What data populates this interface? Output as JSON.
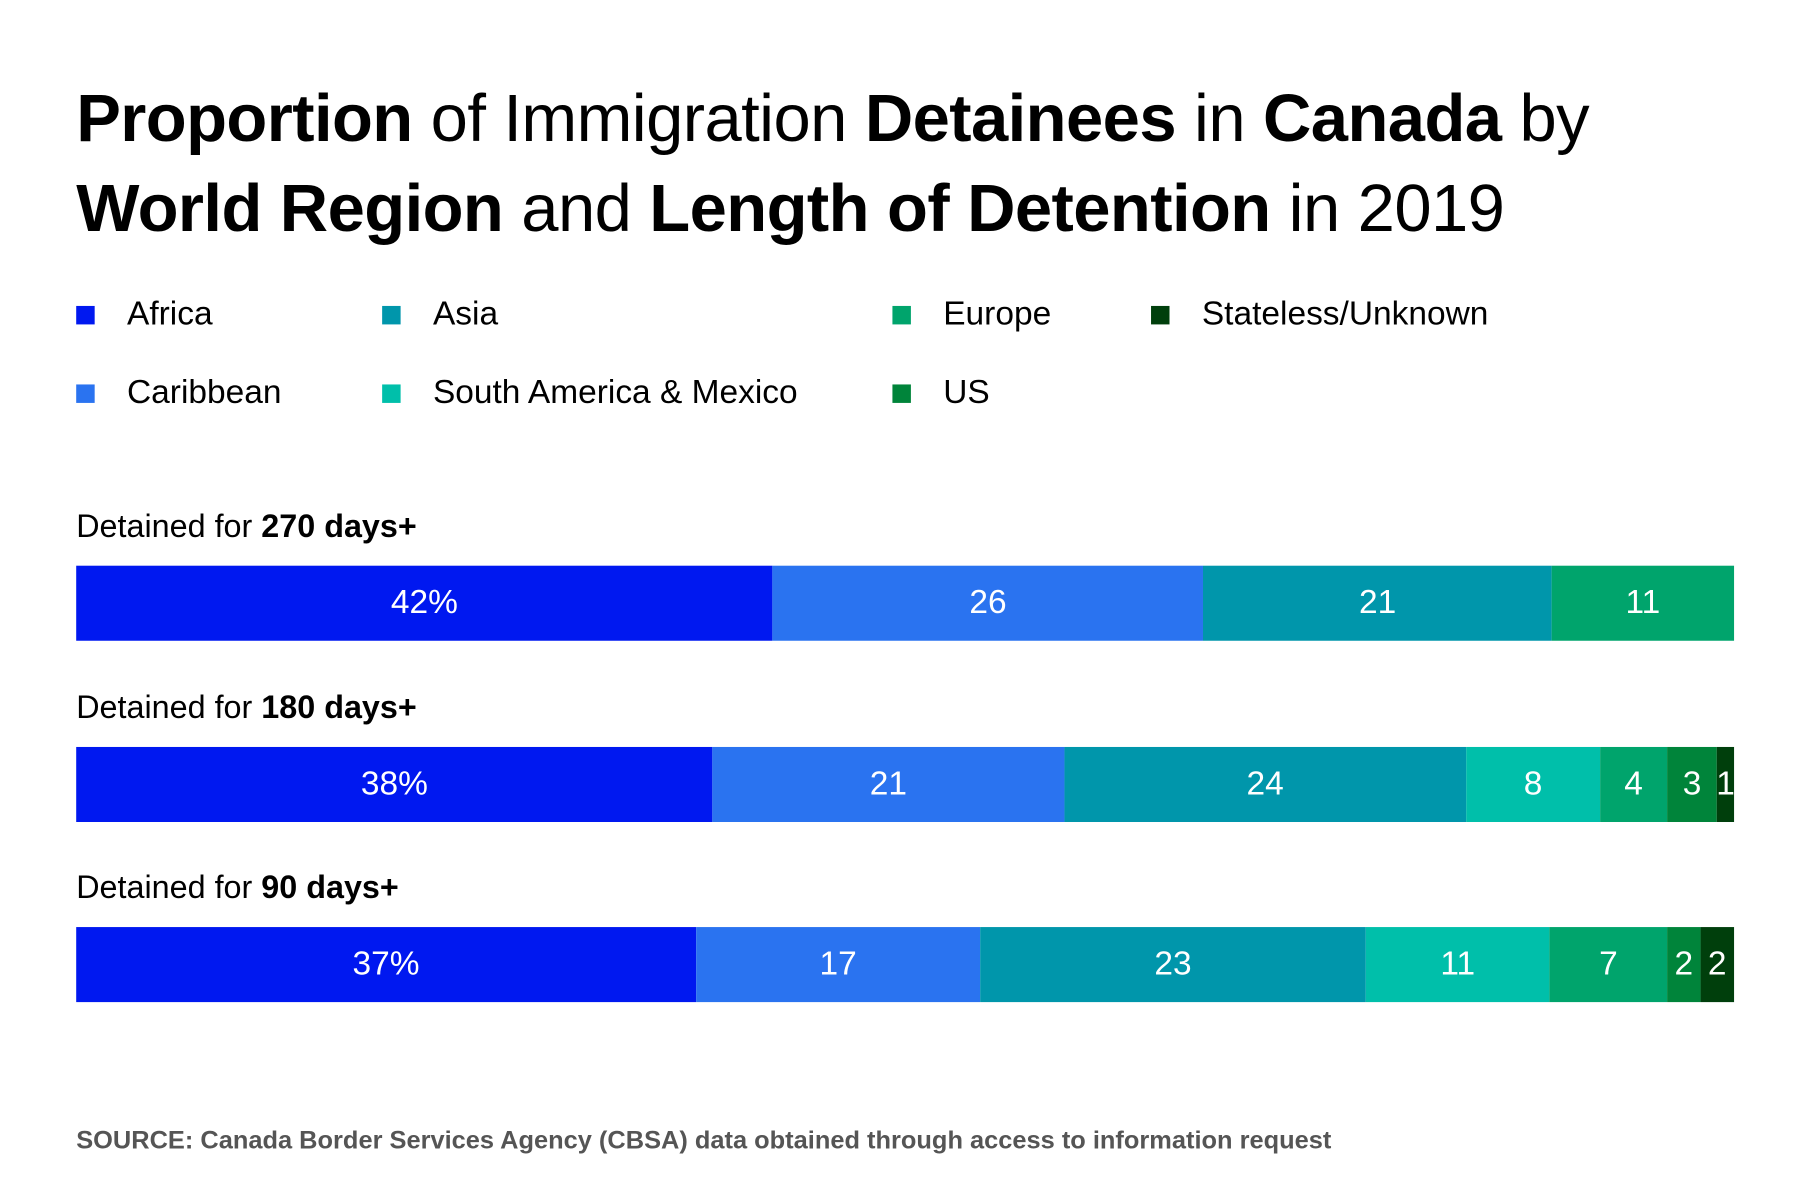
{
  "chart_data": {
    "type": "bar",
    "orientation": "horizontal-stacked",
    "title_parts": [
      {
        "text": "Proportion",
        "bold": true
      },
      {
        "text": " of Immigration ",
        "bold": false
      },
      {
        "text": "Detainees",
        "bold": true
      },
      {
        "text": " in ",
        "bold": false
      },
      {
        "text": "Canada",
        "bold": true
      },
      {
        "text": " by ",
        "bold": false
      },
      {
        "text": "World Region",
        "bold": true
      },
      {
        "text": " and ",
        "bold": false
      },
      {
        "text": "Length of Detention",
        "bold": true
      },
      {
        "text": " in 2019",
        "bold": false
      }
    ],
    "legend": [
      {
        "name": "Africa",
        "color": "#0018f0"
      },
      {
        "name": "Caribbean",
        "color": "#2a73f0"
      },
      {
        "name": "Asia",
        "color": "#0096ab"
      },
      {
        "name": "South America & Mexico",
        "color": "#00bfaa"
      },
      {
        "name": "Europe",
        "color": "#00a46c"
      },
      {
        "name": "US",
        "color": "#00843a"
      },
      {
        "name": "Stateless/Unknown",
        "color": "#003f0c"
      }
    ],
    "legend_placement": "top",
    "groups": [
      {
        "label_prefix": "Detained for ",
        "label_bold": "270 days+",
        "segments": [
          {
            "series": "Africa",
            "value": 42,
            "label": "42%"
          },
          {
            "series": "Caribbean",
            "value": 26,
            "label": "26"
          },
          {
            "series": "Asia",
            "value": 21,
            "label": "21"
          },
          {
            "series": "Europe",
            "value": 11,
            "label": "11"
          }
        ]
      },
      {
        "label_prefix": "Detained for ",
        "label_bold": "180 days+",
        "segments": [
          {
            "series": "Africa",
            "value": 38,
            "label": "38%"
          },
          {
            "series": "Caribbean",
            "value": 21,
            "label": "21"
          },
          {
            "series": "Asia",
            "value": 24,
            "label": "24"
          },
          {
            "series": "South America & Mexico",
            "value": 8,
            "label": "8"
          },
          {
            "series": "Europe",
            "value": 4,
            "label": "4"
          },
          {
            "series": "US",
            "value": 3,
            "label": "3"
          },
          {
            "series": "Stateless/Unknown",
            "value": 1,
            "label": "1"
          }
        ]
      },
      {
        "label_prefix": "Detained for ",
        "label_bold": "90 days+",
        "segments": [
          {
            "series": "Africa",
            "value": 37,
            "label": "37%"
          },
          {
            "series": "Caribbean",
            "value": 17,
            "label": "17"
          },
          {
            "series": "Asia",
            "value": 23,
            "label": "23"
          },
          {
            "series": "South America & Mexico",
            "value": 11,
            "label": "11"
          },
          {
            "series": "Europe",
            "value": 7,
            "label": "7"
          },
          {
            "series": "US",
            "value": 2,
            "label": "2"
          },
          {
            "series": "Stateless/Unknown",
            "value": 2,
            "label": "2"
          }
        ]
      }
    ],
    "grid": false,
    "source": "SOURCE: Canada Border Services Agency (CBSA) data obtained through access to information request"
  }
}
